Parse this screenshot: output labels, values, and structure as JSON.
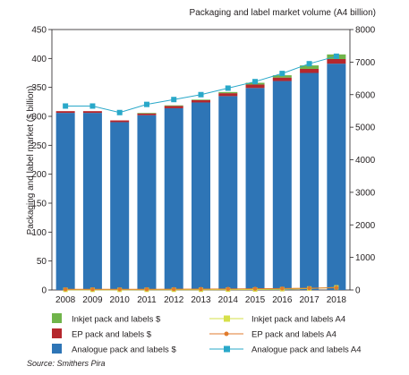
{
  "chart_data": {
    "type": "bar",
    "categories": [
      "2008",
      "2009",
      "2010",
      "2011",
      "2012",
      "2013",
      "2014",
      "2015",
      "2016",
      "2017",
      "2018"
    ],
    "bar_series": [
      {
        "name": "Analogue pack and labels $",
        "color": "#2e75b6",
        "values": [
          306,
          306,
          290,
          302,
          314,
          324,
          335,
          349,
          361,
          375,
          391
        ]
      },
      {
        "name": "EP pack and labels $",
        "color": "#b5272d",
        "values": [
          3,
          3,
          3,
          3,
          4,
          4,
          5,
          6,
          6,
          7,
          8
        ]
      },
      {
        "name": "Inkjet pack and labels $",
        "color": "#70b44a",
        "values": [
          0,
          0,
          0,
          1,
          1,
          1,
          2,
          3,
          4,
          6,
          8
        ]
      }
    ],
    "line_series": [
      {
        "name": "Inkjet pack and labels A4",
        "color": "#d6e04a",
        "values": [
          5,
          5,
          5,
          6,
          7,
          8,
          10,
          15,
          25,
          45,
          80
        ],
        "marker": "square"
      },
      {
        "name": "EP pack and labels A4",
        "color": "#e07b2c",
        "values": [
          20,
          20,
          20,
          22,
          25,
          28,
          32,
          38,
          45,
          55,
          68
        ],
        "marker": "circle"
      },
      {
        "name": "Analogue pack and labels A4",
        "color": "#29a8c9",
        "values": [
          5650,
          5650,
          5450,
          5700,
          5850,
          6000,
          6200,
          6400,
          6650,
          6950,
          7180
        ],
        "marker": "square"
      }
    ],
    "y_left": {
      "label": "Packaging and label market ($ billion)",
      "min": 0,
      "max": 450,
      "ticks": [
        "0",
        "50",
        "100",
        "150",
        "200",
        "250",
        "300",
        "350",
        "400",
        "450"
      ]
    },
    "y_right": {
      "label": "Packaging and label market volume (A4 billion)",
      "min": 0,
      "max": 8000,
      "ticks": [
        "0",
        "1000",
        "2000",
        "3000",
        "4000",
        "5000",
        "6000",
        "7000",
        "8000"
      ]
    },
    "legend_position": "bottom",
    "legend_order_left": [
      "Inkjet pack and labels $",
      "EP pack and labels $",
      "Analogue pack and labels $"
    ],
    "legend_order_right": [
      "Inkjet pack and labels A4",
      "EP pack and labels A4",
      "Analogue pack and labels A4"
    ]
  },
  "source": "Source: Smithers Pira"
}
